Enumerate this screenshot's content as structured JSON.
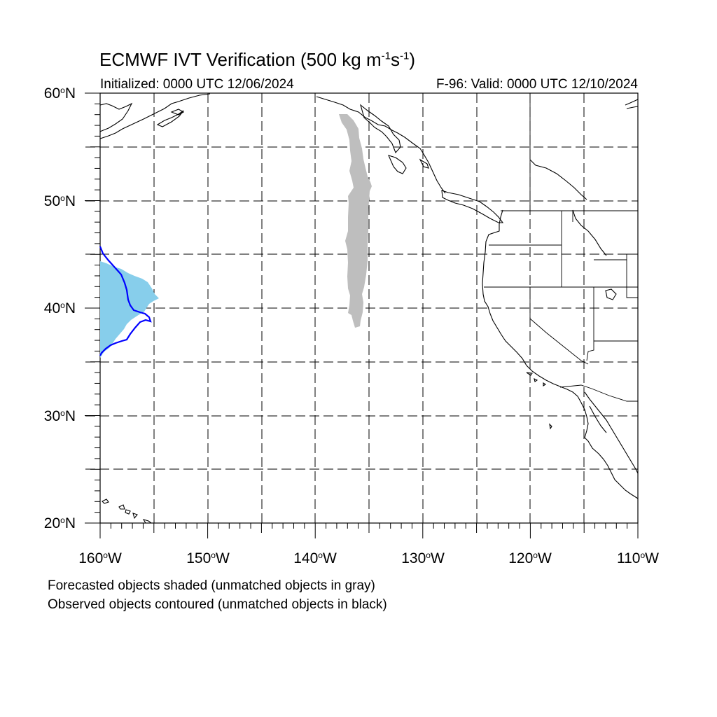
{
  "title": {
    "main": "ECMWF IVT Verification (500 kg m",
    "unit_exp1": "-1",
    "unit_mid": "s",
    "unit_exp2": "-1",
    "unit_close": ")"
  },
  "subtitle": {
    "initialized": "Initialized: 0000 UTC 12/06/2024",
    "valid": "F-96: Valid: 0000 UTC 12/10/2024"
  },
  "axes": {
    "lat_labels": [
      "60",
      "50",
      "40",
      "30",
      "20"
    ],
    "lat_suffix": "N",
    "lon_labels": [
      "160",
      "150",
      "140",
      "130",
      "120",
      "110"
    ],
    "lon_suffix": "W",
    "degree_symbol": "o"
  },
  "notes": {
    "line1": "Forecasted objects shaded (unmatched objects in gray)",
    "line2": "Observed objects contoured (unmatched objects in black)"
  },
  "colors": {
    "matched_forecast_fill": "#87ceeb",
    "unmatched_forecast_fill": "#bebebe",
    "observed_contour": "#0000ff",
    "coastline": "#000000",
    "grid": "#000000"
  },
  "map_extent": {
    "lon_min": -160,
    "lon_max": -110,
    "lat_min": 20,
    "lat_max": 60,
    "gridline_spacing_deg": 5,
    "gridline_style": "dashed"
  }
}
